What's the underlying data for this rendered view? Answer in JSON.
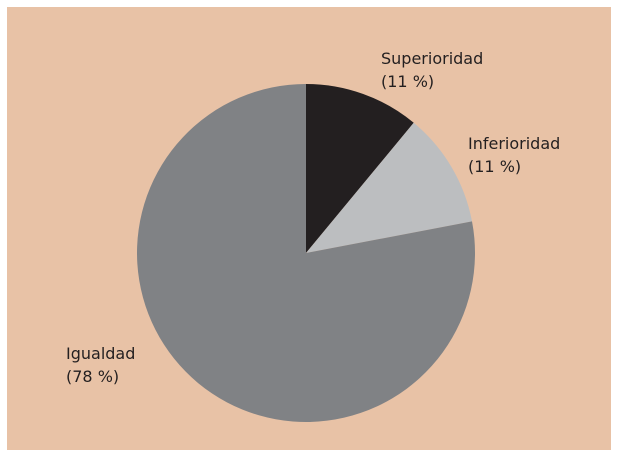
{
  "chart_data": {
    "type": "pie",
    "start_angle_deg": 0,
    "direction": "clockwise",
    "slices": [
      {
        "label": "Superioridad",
        "value": 11,
        "value_text": "(11 %)",
        "color": "#231f20"
      },
      {
        "label": "Inferioridad",
        "value": 11,
        "value_text": "(11 %)",
        "color": "#bcbec0"
      },
      {
        "label": "Igualdad",
        "value": 78,
        "value_text": "(78 %)",
        "color": "#808285"
      }
    ]
  },
  "colors": {
    "background": "#e8c2a6",
    "text": "#231f20"
  }
}
